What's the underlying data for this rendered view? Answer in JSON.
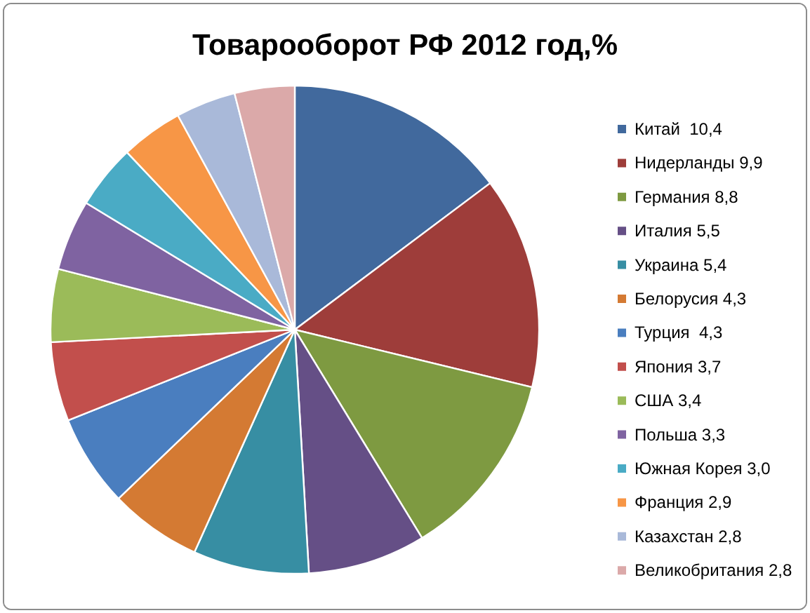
{
  "chart_data": {
    "type": "pie",
    "title": "Товарооборот РФ 2012 год,%",
    "categories": [
      "Китай  10,4",
      "Нидерланды 9,9",
      "Германия 8,8",
      "Италия 5,5",
      "Украина 5,4",
      "Белорусия 4,3",
      "Турция  4,3",
      "Япония 3,7",
      "США 3,4",
      "Польша 3,3",
      "Южная Корея 3,0",
      "Франция 2,9",
      "Казахстан 2,8",
      "Великобритания 2,8"
    ],
    "values": [
      10.4,
      9.9,
      8.8,
      5.5,
      5.4,
      4.3,
      4.3,
      3.7,
      3.4,
      3.3,
      3.0,
      2.9,
      2.8,
      2.8
    ],
    "colors": [
      "#41699d",
      "#9e3d3a",
      "#7e9a41",
      "#654f86",
      "#378ea3",
      "#d47a33",
      "#4a7ebf",
      "#c24f4c",
      "#9bbb59",
      "#7f63a1",
      "#4aabc5",
      "#f79646",
      "#a9b9d9",
      "#dba9a9"
    ],
    "legend": "right"
  }
}
